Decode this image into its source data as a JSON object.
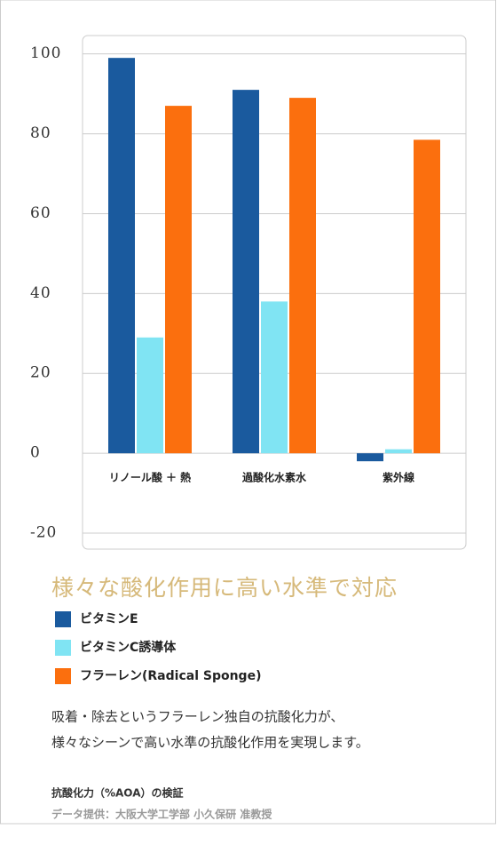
{
  "chart_data": {
    "type": "bar",
    "title": "様々な酸化作用に高い水準で対応",
    "categories": [
      "リノール酸 ＋ 熱",
      "過酸化水素水",
      "紫外線"
    ],
    "series": [
      {
        "name": "ビタミンE",
        "color": "#1a5a9e",
        "values": [
          99,
          91,
          -2
        ]
      },
      {
        "name": "ビタミンC誘導体",
        "color": "#80e4f3",
        "values": [
          29,
          38,
          1
        ]
      },
      {
        "name": "フラーレン(Radical Sponge)",
        "color": "#fb6f0e",
        "values": [
          87,
          89,
          78.5
        ]
      }
    ],
    "ylim": [
      -24,
      104.6
    ],
    "yticks": [
      -20,
      0,
      20,
      40,
      60,
      80,
      100
    ],
    "grid": true
  },
  "description": {
    "lines": [
      "吸着・除去というフラーレン独自の抗酸化力が、",
      "様々なシーンで高い水準の抗酸化作用を実現します。"
    ],
    "source_title": "抗酸化力（%AOA）の検証",
    "source": "データ提供：大阪大学工学部 小久保研 准教授"
  }
}
